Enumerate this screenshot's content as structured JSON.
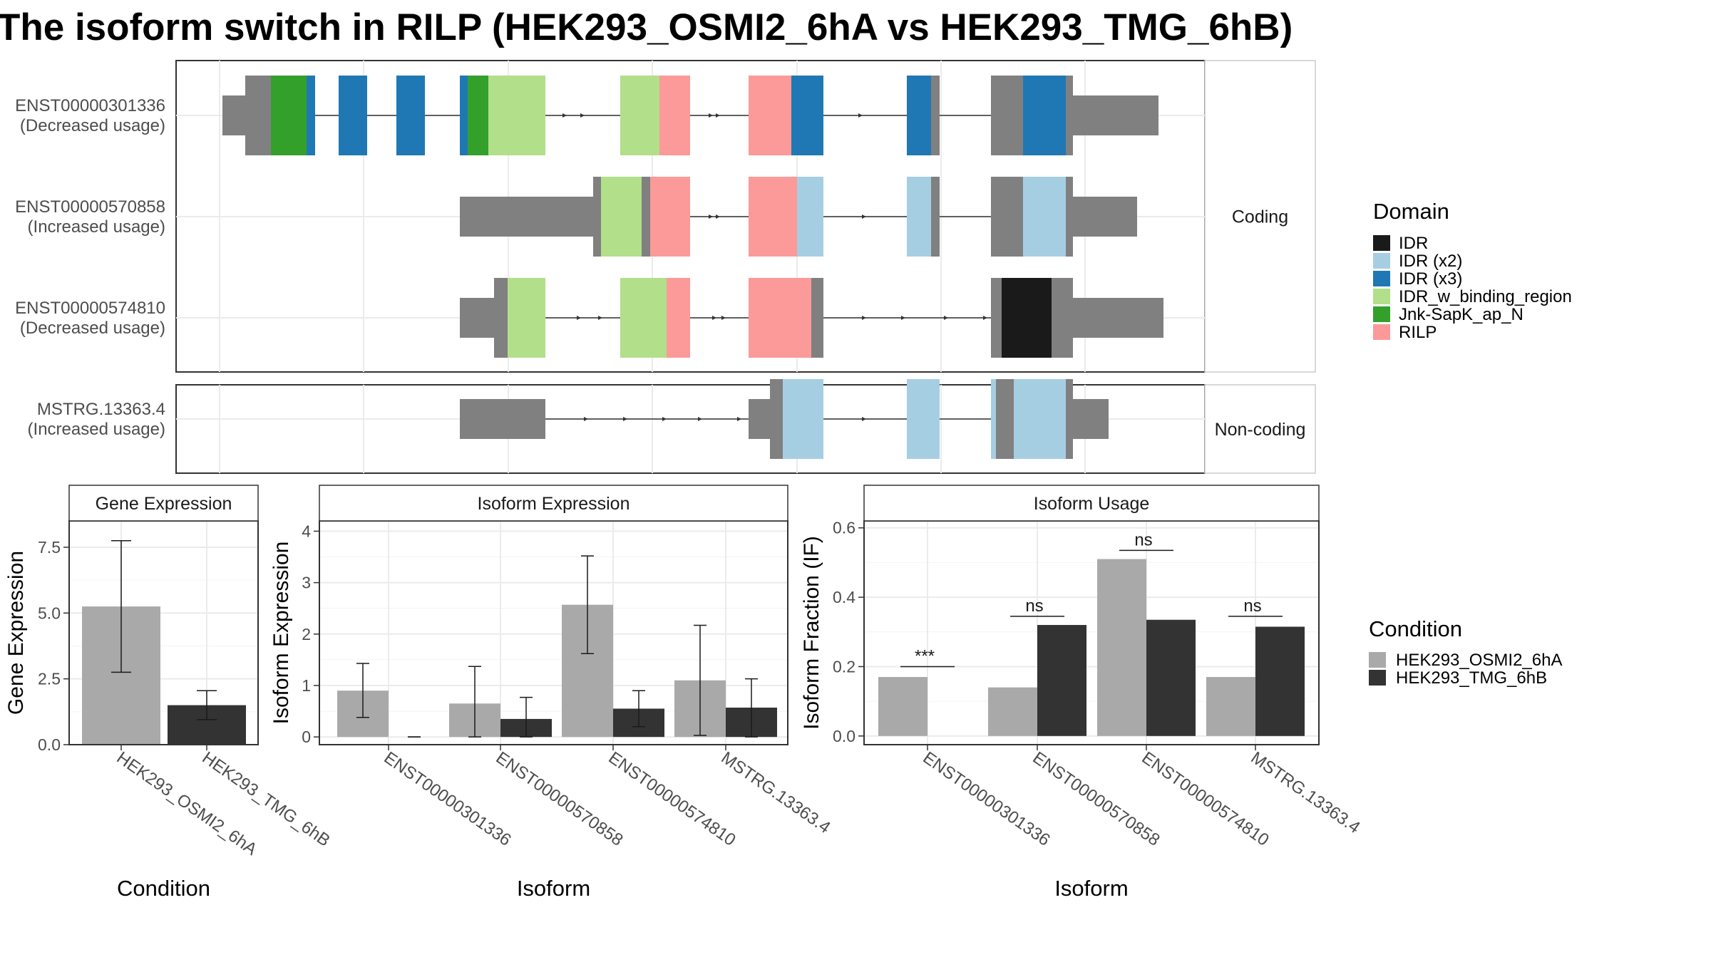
{
  "title": "The isoform switch in RILP (HEK293_OSMI2_6hA vs HEK293_TMG_6hB)",
  "colors": {
    "utr": "#808080",
    "intron": "#333333",
    "panel_border": "#333333",
    "strip_fill": "#ffffff",
    "grid": "#ebebeb",
    "cond_a": "#a9a9a9",
    "cond_b": "#333333"
  },
  "chart_data": [
    {
      "type": "gene-structure",
      "panels": [
        {
          "strip": "Coding",
          "isoforms": [
            "ENST00000301336",
            "ENST00000570858",
            "ENST00000574810"
          ]
        },
        {
          "strip": "Non-coding",
          "isoforms": [
            "MSTRG.13363.4"
          ]
        }
      ],
      "isoforms": [
        {
          "id": "ENST00000301336",
          "usage": "(Decreased usage)"
        },
        {
          "id": "ENST00000570858",
          "usage": "(Increased usage)"
        },
        {
          "id": "ENST00000574810",
          "usage": "(Decreased usage)"
        },
        {
          "id": "MSTRG.13363.4",
          "usage": "(Increased usage)"
        }
      ],
      "legend": {
        "title": "Domain",
        "entries": [
          {
            "label": "IDR",
            "color": "#1a1a1a"
          },
          {
            "label": "IDR (x2)",
            "color": "#a6cee3"
          },
          {
            "label": "IDR (x3)",
            "color": "#1f78b4"
          },
          {
            "label": "IDR_w_binding_region",
            "color": "#b2df8a"
          },
          {
            "label": "Jnk-SapK_ap_N",
            "color": "#33a02c"
          },
          {
            "label": "RILP",
            "color": "#fb9a99"
          }
        ]
      }
    },
    {
      "type": "bar",
      "title": "Gene Expression",
      "xlabel": "Condition",
      "ylabel": "Gene Expression",
      "ylim": [
        0,
        8.5
      ],
      "yticks": [
        0.0,
        2.5,
        5.0,
        7.5
      ],
      "ytick_labels": [
        "0.0",
        "2.5",
        "5.0",
        "7.5"
      ],
      "categories": [
        "HEK293_OSMI2_6hA",
        "HEK293_TMG_6hB"
      ],
      "values": [
        5.25,
        1.5
      ],
      "errors": [
        [
          2.75,
          7.75
        ],
        [
          0.95,
          2.05
        ]
      ]
    },
    {
      "type": "bar",
      "title": "Isoform Expression",
      "xlabel": "Isoform",
      "ylabel": "Isoform Expression",
      "ylim": [
        -0.15,
        4.2
      ],
      "yticks": [
        0,
        1,
        2,
        3,
        4
      ],
      "ytick_labels": [
        "0",
        "1",
        "2",
        "3",
        "4"
      ],
      "categories": [
        "ENST00000301336",
        "ENST00000570858",
        "ENST00000574810",
        "MSTRG.13363.4"
      ],
      "series": [
        {
          "name": "HEK293_OSMI2_6hA",
          "values": [
            0.9,
            0.65,
            2.57,
            1.1
          ],
          "errors": [
            [
              0.38,
              1.43
            ],
            [
              0.0,
              1.37
            ],
            [
              1.62,
              3.52
            ],
            [
              0.03,
              2.17
            ]
          ]
        },
        {
          "name": "HEK293_TMG_6hB",
          "values": [
            0.0,
            0.35,
            0.55,
            0.57
          ],
          "errors": [
            [
              0.0,
              0.0
            ],
            [
              0.0,
              0.77
            ],
            [
              0.2,
              0.9
            ],
            [
              0.0,
              1.13
            ]
          ]
        }
      ]
    },
    {
      "type": "bar",
      "title": "Isoform Usage",
      "xlabel": "Isoform",
      "ylabel": "Isoform Fraction (IF)",
      "ylim": [
        -0.025,
        0.62
      ],
      "yticks": [
        0.0,
        0.2,
        0.4,
        0.6
      ],
      "ytick_labels": [
        "0.0",
        "0.2",
        "0.4",
        "0.6"
      ],
      "categories": [
        "ENST00000301336",
        "ENST00000570858",
        "ENST00000574810",
        "MSTRG.13363.4"
      ],
      "series": [
        {
          "name": "HEK293_OSMI2_6hA",
          "values": [
            0.17,
            0.14,
            0.51,
            0.17
          ]
        },
        {
          "name": "HEK293_TMG_6hB",
          "values": [
            0.0,
            0.32,
            0.335,
            0.315
          ]
        }
      ],
      "significance": [
        {
          "label": "***",
          "level": 0.2
        },
        {
          "label": "ns",
          "level": 0.345
        },
        {
          "label": "ns",
          "level": 0.535
        },
        {
          "label": "ns",
          "level": 0.345
        }
      ]
    }
  ],
  "condition_legend": {
    "title": "Condition",
    "entries": [
      {
        "label": "HEK293_OSMI2_6hA",
        "color": "#a9a9a9"
      },
      {
        "label": "HEK293_TMG_6hB",
        "color": "#333333"
      }
    ]
  }
}
